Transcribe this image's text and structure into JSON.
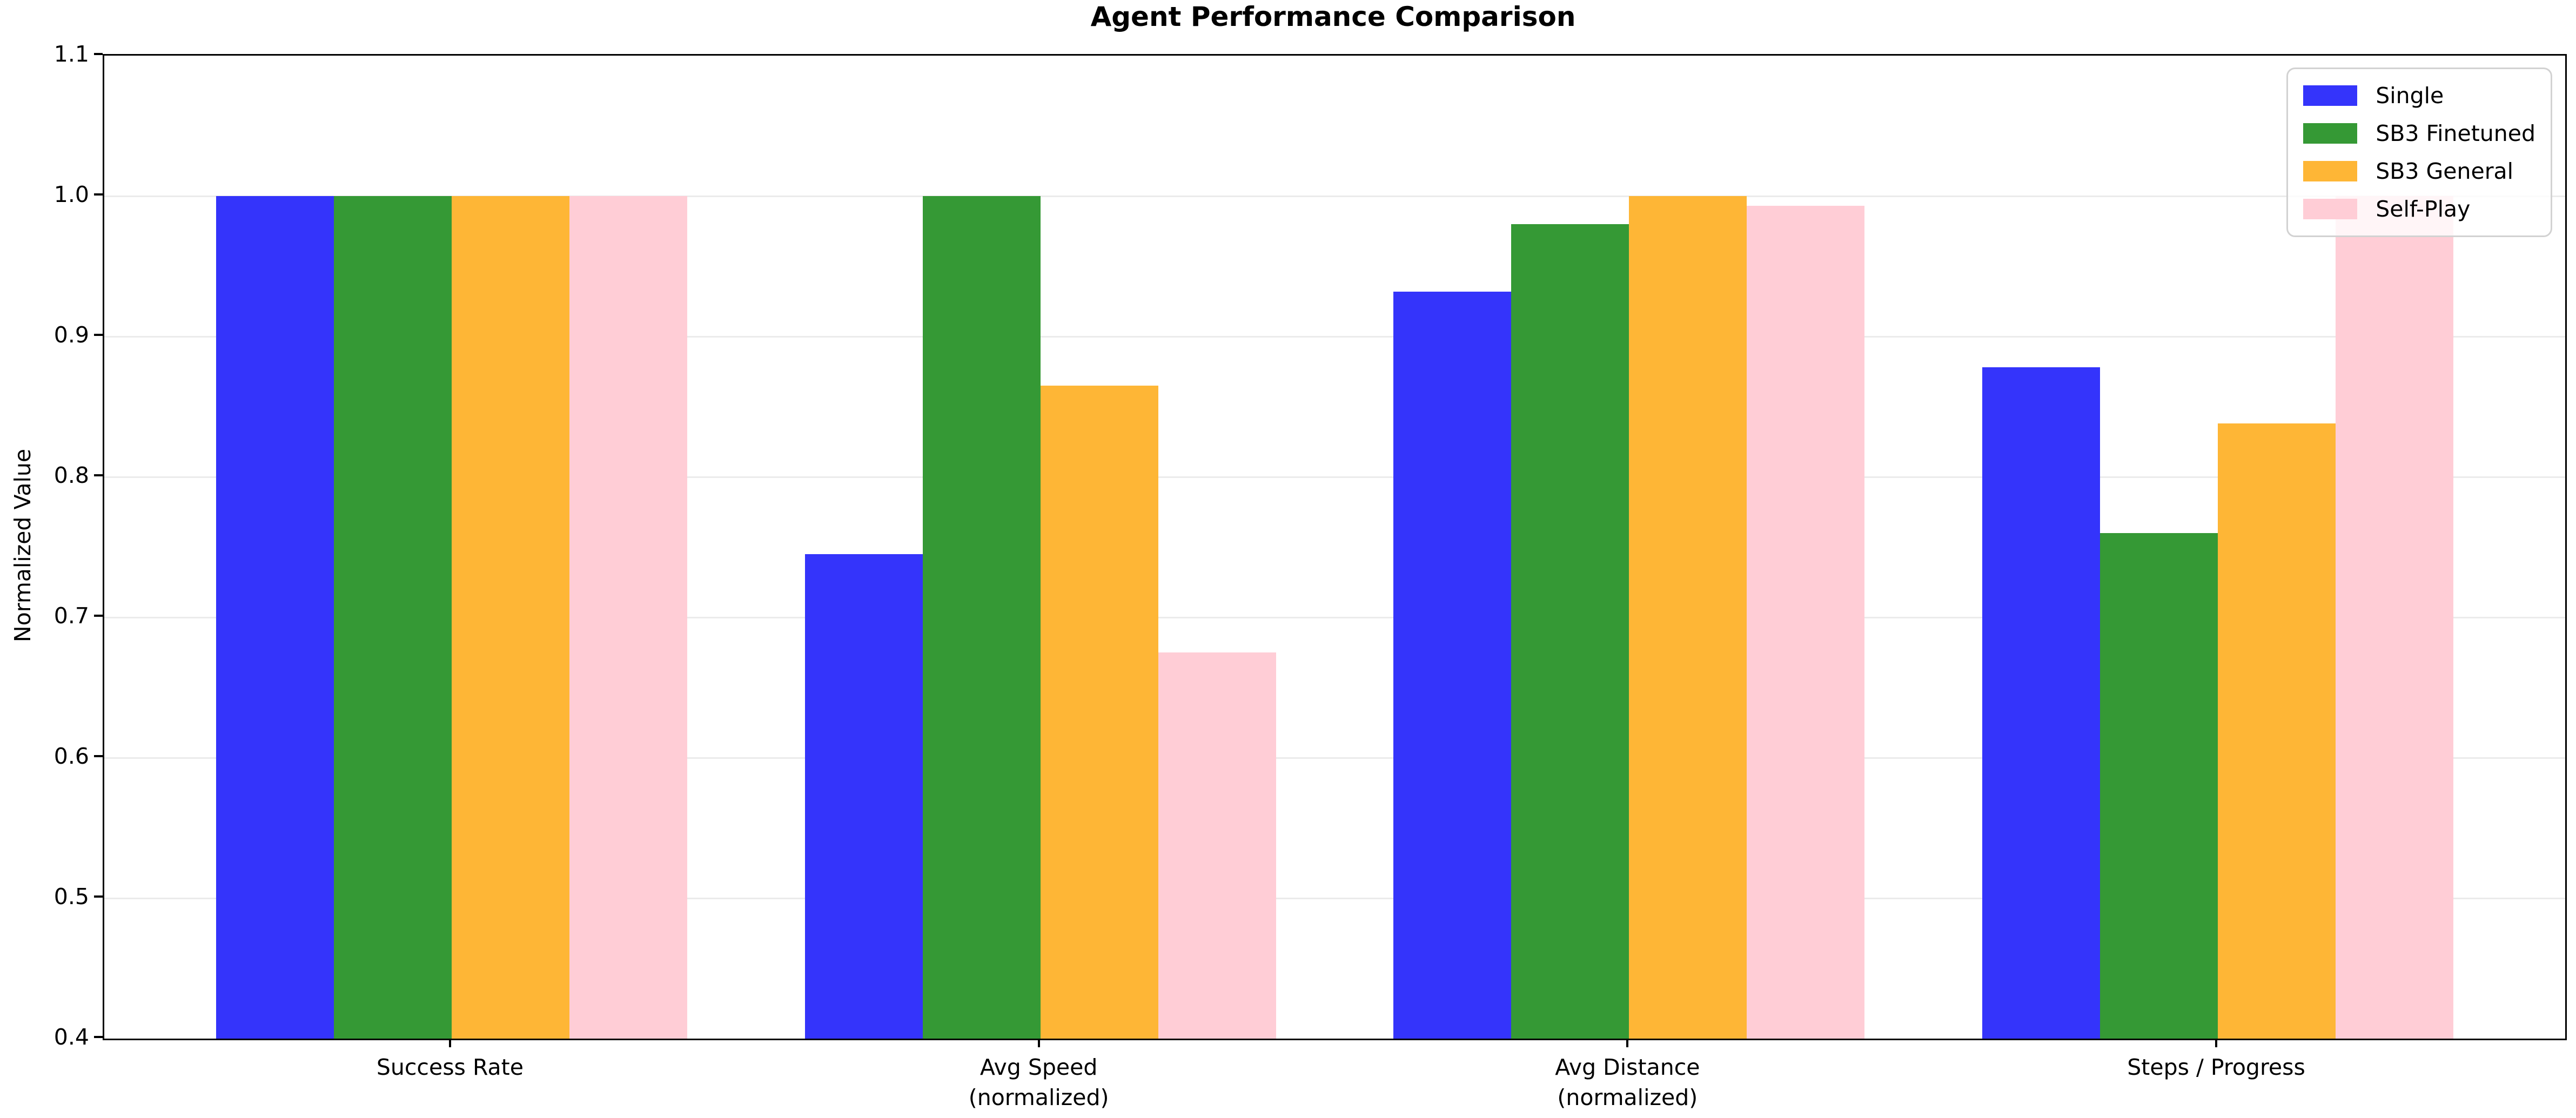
{
  "chart_data": {
    "type": "bar",
    "title": "Agent Performance Comparison",
    "xlabel": "",
    "ylabel": "Normalized Value",
    "ylim": [
      0.4,
      1.1
    ],
    "yticks": [
      0.4,
      0.5,
      0.6,
      0.7,
      0.8,
      0.9,
      1.0,
      1.1
    ],
    "ytick_labels": [
      "0.4",
      "0.5",
      "0.6",
      "0.7",
      "0.8",
      "0.9",
      "1.0",
      "1.1"
    ],
    "categories": [
      "Success Rate",
      "Avg Speed\n(normalized)",
      "Avg Distance\n(normalized)",
      "Steps / Progress"
    ],
    "series": [
      {
        "name": "Single",
        "color": "#3434fb",
        "values": [
          1.0,
          0.745,
          0.932,
          0.878
        ]
      },
      {
        "name": "SB3 Finetuned",
        "color": "#359935",
        "values": [
          1.0,
          1.0,
          0.98,
          0.76
        ]
      },
      {
        "name": "SB3 General",
        "color": "#feb636",
        "values": [
          1.0,
          0.865,
          1.0,
          0.838
        ]
      },
      {
        "name": "Self-Play",
        "color": "#ffcdd6",
        "values": [
          1.0,
          0.675,
          0.993,
          1.0
        ]
      }
    ],
    "legend_position": "upper right",
    "grid": "horizontal",
    "grid_color": "#ebebeb",
    "axis_color": "#000000",
    "background_color": "#ffffff",
    "legend_border_color": "#d2d2d2"
  }
}
